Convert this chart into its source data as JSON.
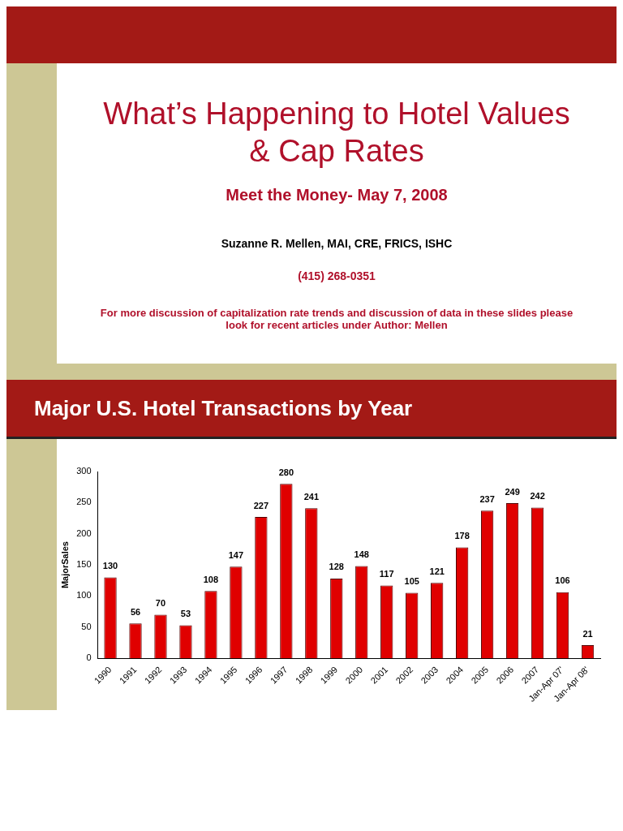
{
  "chart_data": {
    "type": "bar",
    "title": "Major U.S. Hotel Transactions by Year",
    "annotations": [
      "What’s Happening to Hotel Values & Cap Rates",
      "Meet the Money- May 7, 2008",
      "Suzanne R. Mellen, MAI, CRE, FRICS, ISHC",
      "(415) 268-0351",
      "For more discussion of capitalization rate trends and discussion of data in these slides please look for recent articles under Author: Mellen"
    ],
    "categories": [
      "1990",
      "1991",
      "1992",
      "1993",
      "1994",
      "1995",
      "1996",
      "1997",
      "1998",
      "1999",
      "2000",
      "2001",
      "2002",
      "2003",
      "2004",
      "2005",
      "2006",
      "2007",
      "Jan-Apr 07'",
      "Jan-Apr 08'"
    ],
    "values": [
      130,
      56,
      70,
      53,
      108,
      147,
      227,
      280,
      241,
      128,
      148,
      117,
      105,
      121,
      178,
      237,
      249,
      242,
      106,
      21
    ],
    "color": "#e00000",
    "ylabel": "MajorSales",
    "ylim": [
      0,
      300
    ],
    "yticks": [
      0,
      50,
      100,
      150,
      200,
      250,
      300
    ],
    "data_labels": true,
    "grid": false,
    "legend": false
  }
}
